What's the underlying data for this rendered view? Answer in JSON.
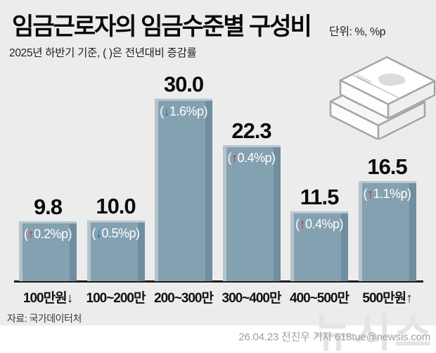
{
  "header": {
    "title": "임금근로자의 임금수준별 구성비",
    "unit": "단위: %, %p",
    "subtitle": "2025년 하반기 기준, ( )은 전년대비 증감률"
  },
  "chart_data": {
    "type": "bar",
    "title": "임금근로자의 임금수준별 구성비",
    "unit": "%, %p",
    "categories": [
      "100만원↓",
      "100~200만",
      "200~300만",
      "300~400만",
      "400~500만",
      "500만원↑"
    ],
    "values": [
      9.8,
      10.0,
      30.0,
      22.3,
      11.5,
      16.5
    ],
    "value_labels": [
      "9.8",
      "10.0",
      "30.0",
      "22.3",
      "11.5",
      "16.5"
    ],
    "changes": [
      {
        "dir": "up",
        "label": "0.2%p"
      },
      {
        "dir": "down",
        "label": "0.5%p"
      },
      {
        "dir": "down",
        "label": "1.6%p"
      },
      {
        "dir": "up",
        "label": "0.4%p"
      },
      {
        "dir": "up",
        "label": "0.4%p"
      },
      {
        "dir": "up",
        "label": "1.1%p"
      }
    ],
    "ylim": [
      0,
      30
    ],
    "grid": false,
    "legend": false,
    "bar_color": "#84a1b1"
  },
  "colors": {
    "background": "#ececec",
    "bar_body": "#84a1b1",
    "bar_highlight": "#b6c3cb",
    "bar_shadow": "#6f8e9f",
    "up_arrow": "#e01f1f",
    "down_arrow": "#1a68b2",
    "axis_line": "#1c1c1c"
  },
  "icons": {
    "money_stack": "money-stack-icon",
    "banknote_text": "50000"
  },
  "footer": {
    "source": "자료: 국가데이터처",
    "watermark": "뉴시스",
    "credit": "26.04.23 전진우 기자 618tue@newsis.com"
  }
}
